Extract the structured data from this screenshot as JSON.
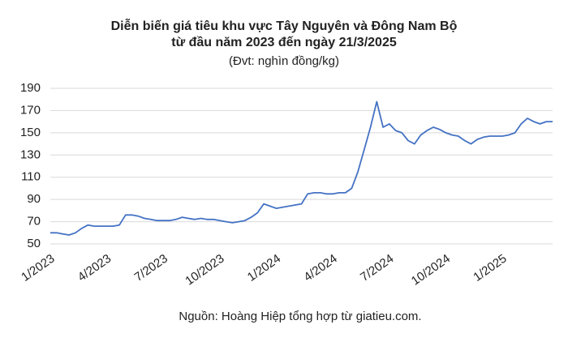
{
  "chart_data": {
    "type": "line",
    "title": [
      "Diễn biến giá tiêu khu vực Tây Nguyên và Đông Nam Bộ",
      "từ đầu năm 2023 đến ngày 21/3/2025"
    ],
    "unit_note": "(Đvt: nghìn đồng/kg)",
    "source": "Nguồn: Hoàng Hiệp tổng hợp từ giatieu.com.",
    "categories": [
      "1/2023",
      null,
      null,
      null,
      null,
      null,
      null,
      null,
      null,
      "4/2023",
      null,
      null,
      null,
      null,
      null,
      null,
      null,
      null,
      "7/2023",
      null,
      null,
      null,
      null,
      null,
      null,
      null,
      null,
      "10/2023",
      null,
      null,
      null,
      null,
      null,
      null,
      null,
      null,
      "1/2024",
      null,
      null,
      null,
      null,
      null,
      null,
      null,
      null,
      "4/2024",
      null,
      null,
      null,
      null,
      null,
      null,
      null,
      null,
      "7/2024",
      null,
      null,
      null,
      null,
      null,
      null,
      null,
      null,
      "10/2024",
      null,
      null,
      null,
      null,
      null,
      null,
      null,
      null,
      "1/2025",
      null,
      null,
      null,
      null,
      null,
      null,
      null,
      null
    ],
    "values": [
      60,
      60,
      59,
      58,
      60,
      64,
      67,
      66,
      66,
      66,
      66,
      67,
      76,
      76,
      75,
      73,
      72,
      71,
      71,
      71,
      72,
      74,
      73,
      72,
      73,
      72,
      72,
      71,
      70,
      69,
      70,
      71,
      74,
      78,
      86,
      84,
      82,
      83,
      84,
      85,
      86,
      95,
      96,
      96,
      95,
      95,
      96,
      96,
      100,
      115,
      135,
      155,
      178,
      155,
      158,
      152,
      150,
      143,
      140,
      148,
      152,
      155,
      153,
      150,
      148,
      147,
      143,
      140,
      144,
      146,
      147,
      147,
      147,
      148,
      150,
      158,
      163,
      160,
      158,
      160,
      160
    ],
    "color": "#4472c4",
    "ylim": [
      50,
      190
    ],
    "yticks": [
      50,
      70,
      90,
      110,
      130,
      150,
      170,
      190
    ],
    "grid": true
  }
}
